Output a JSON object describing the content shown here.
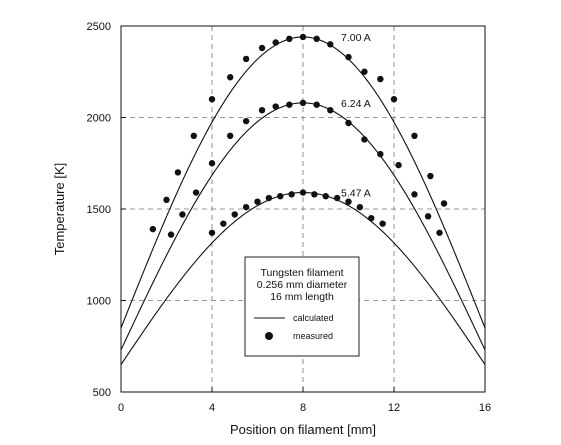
{
  "chart_data": {
    "type": "line",
    "title": "",
    "xlabel": "Position on filament [mm]",
    "ylabel": "Temperature [K]",
    "xlim": [
      0,
      16
    ],
    "ylim": [
      500,
      2500
    ],
    "xticks": [
      0,
      4,
      8,
      12,
      16
    ],
    "yticks": [
      500,
      1000,
      1500,
      2000,
      2500
    ],
    "grid": "dashed at ticks",
    "series": [
      {
        "name": "7.00 A",
        "calculated": {
          "end_value": 850,
          "peak_value": 2440,
          "peak_x": 8
        },
        "measured": [
          {
            "x": 1.4,
            "y": 1390
          },
          {
            "x": 2.0,
            "y": 1550
          },
          {
            "x": 2.5,
            "y": 1700
          },
          {
            "x": 3.2,
            "y": 1900
          },
          {
            "x": 4.0,
            "y": 2100
          },
          {
            "x": 4.8,
            "y": 2220
          },
          {
            "x": 5.5,
            "y": 2320
          },
          {
            "x": 6.2,
            "y": 2380
          },
          {
            "x": 6.8,
            "y": 2410
          },
          {
            "x": 7.4,
            "y": 2430
          },
          {
            "x": 8.0,
            "y": 2440
          },
          {
            "x": 8.6,
            "y": 2430
          },
          {
            "x": 9.2,
            "y": 2400
          },
          {
            "x": 10.0,
            "y": 2330
          },
          {
            "x": 10.7,
            "y": 2250
          },
          {
            "x": 11.4,
            "y": 2210
          },
          {
            "x": 12.0,
            "y": 2100
          },
          {
            "x": 12.9,
            "y": 1900
          },
          {
            "x": 13.6,
            "y": 1680
          },
          {
            "x": 14.2,
            "y": 1530
          }
        ]
      },
      {
        "name": "6.24 A",
        "calculated": {
          "end_value": 730,
          "peak_value": 2080,
          "peak_x": 8
        },
        "measured": [
          {
            "x": 2.2,
            "y": 1360
          },
          {
            "x": 2.7,
            "y": 1470
          },
          {
            "x": 3.3,
            "y": 1590
          },
          {
            "x": 4.0,
            "y": 1750
          },
          {
            "x": 4.8,
            "y": 1900
          },
          {
            "x": 5.5,
            "y": 1980
          },
          {
            "x": 6.2,
            "y": 2040
          },
          {
            "x": 6.8,
            "y": 2060
          },
          {
            "x": 7.4,
            "y": 2070
          },
          {
            "x": 8.0,
            "y": 2080
          },
          {
            "x": 8.6,
            "y": 2070
          },
          {
            "x": 9.2,
            "y": 2040
          },
          {
            "x": 10.0,
            "y": 1970
          },
          {
            "x": 10.7,
            "y": 1880
          },
          {
            "x": 11.4,
            "y": 1800
          },
          {
            "x": 12.2,
            "y": 1740
          },
          {
            "x": 12.9,
            "y": 1580
          },
          {
            "x": 13.5,
            "y": 1460
          },
          {
            "x": 14.0,
            "y": 1370
          }
        ]
      },
      {
        "name": "5.47 A",
        "calculated": {
          "end_value": 650,
          "peak_value": 1590,
          "peak_x": 8
        },
        "measured": [
          {
            "x": 4.0,
            "y": 1370
          },
          {
            "x": 4.5,
            "y": 1420
          },
          {
            "x": 5.0,
            "y": 1470
          },
          {
            "x": 5.5,
            "y": 1510
          },
          {
            "x": 6.0,
            "y": 1540
          },
          {
            "x": 6.5,
            "y": 1560
          },
          {
            "x": 7.0,
            "y": 1570
          },
          {
            "x": 7.5,
            "y": 1580
          },
          {
            "x": 8.0,
            "y": 1590
          },
          {
            "x": 8.5,
            "y": 1580
          },
          {
            "x": 9.0,
            "y": 1570
          },
          {
            "x": 9.5,
            "y": 1560
          },
          {
            "x": 10.0,
            "y": 1540
          },
          {
            "x": 10.5,
            "y": 1510
          },
          {
            "x": 11.0,
            "y": 1450
          },
          {
            "x": 11.5,
            "y": 1420
          }
        ]
      }
    ],
    "legend": {
      "placement": "bottom-center",
      "title_lines": [
        "Tungsten filament",
        "0.256 mm diameter",
        "16 mm length"
      ],
      "calculated_label": "calculated",
      "measured_label": "measured"
    }
  }
}
